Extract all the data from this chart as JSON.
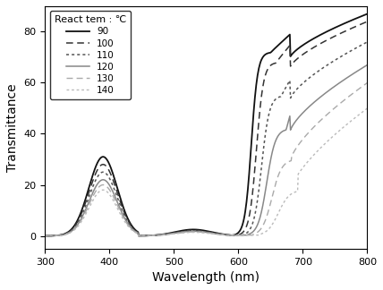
{
  "title": "",
  "xlabel": "Wavelength (nm)",
  "ylabel": "Transmittance",
  "xlim": [
    300,
    800
  ],
  "ylim": [
    -5,
    90
  ],
  "yticks": [
    0,
    20,
    40,
    60,
    80
  ],
  "xticks": [
    300,
    400,
    500,
    600,
    700,
    800
  ],
  "legend_title": "React tem : ℃",
  "series": [
    {
      "label": "90",
      "color": "#111111",
      "linestyle": "solid",
      "linewidth": 1.3
    },
    {
      "label": "100",
      "color": "#333333",
      "linestyle": "dashed",
      "linewidth": 1.1
    },
    {
      "label": "110",
      "color": "#555555",
      "linestyle": "dotted",
      "linewidth": 1.1
    },
    {
      "label": "120",
      "color": "#888888",
      "linestyle": "solid",
      "linewidth": 1.1
    },
    {
      "label": "130",
      "color": "#aaaaaa",
      "linestyle": "dashed",
      "linewidth": 1.0
    },
    {
      "label": "140",
      "color": "#bbbbbb",
      "linestyle": "dotted",
      "linewidth": 1.0
    }
  ],
  "background_color": "#ffffff",
  "watermark_color": "#cce0f5"
}
